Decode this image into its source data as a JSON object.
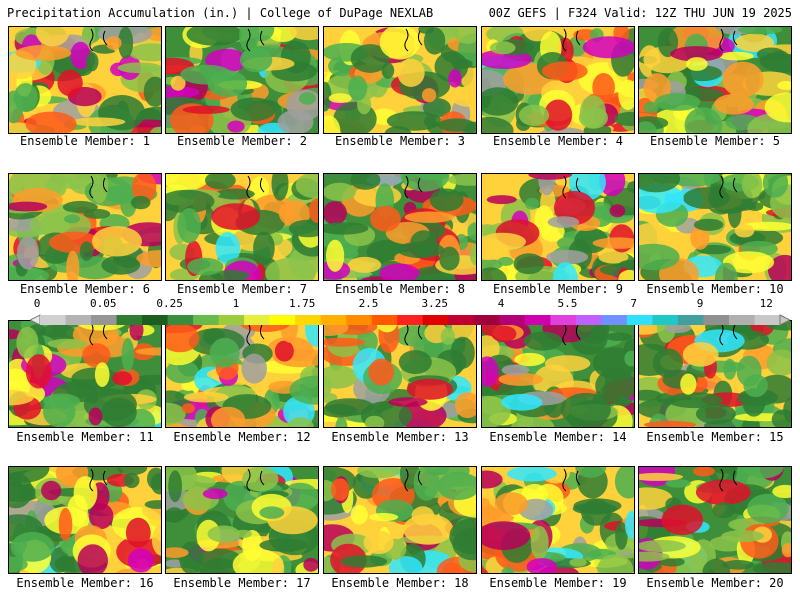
{
  "header": {
    "left": "Precipitation Accumulation (in.) | College of DuPage NEXLAB",
    "right": "00Z GEFS | F324 Valid: 12Z THU JUN 19 2025"
  },
  "panels": [
    {
      "label": "Ensemble Member: 1"
    },
    {
      "label": "Ensemble Member: 2"
    },
    {
      "label": "Ensemble Member: 3"
    },
    {
      "label": "Ensemble Member: 4"
    },
    {
      "label": "Ensemble Member: 5"
    },
    {
      "label": "Ensemble Member: 6"
    },
    {
      "label": "Ensemble Member: 7"
    },
    {
      "label": "Ensemble Member: 8"
    },
    {
      "label": "Ensemble Member: 9"
    },
    {
      "label": "Ensemble Member: 10"
    },
    {
      "label": "Ensemble Member: 11"
    },
    {
      "label": "Ensemble Member: 12"
    },
    {
      "label": "Ensemble Member: 13"
    },
    {
      "label": "Ensemble Member: 14"
    },
    {
      "label": "Ensemble Member: 15"
    },
    {
      "label": "Ensemble Member: 16"
    },
    {
      "label": "Ensemble Member: 17"
    },
    {
      "label": "Ensemble Member: 18"
    },
    {
      "label": "Ensemble Member: 19"
    },
    {
      "label": "Ensemble Member: 20"
    }
  ],
  "colorbar": {
    "tick_labels": [
      "0",
      "0.05",
      "0.25",
      "1",
      "1.75",
      "2.5",
      "3.25",
      "4",
      "5.5",
      "7",
      "9",
      "12"
    ],
    "colors": [
      "#d0d0d0",
      "#b4b4b4",
      "#969696",
      "#2e7d32",
      "#1b5e20",
      "#388e3c",
      "#66bb4a",
      "#9ccc3c",
      "#e6f03c",
      "#ffff00",
      "#ffd700",
      "#ffb000",
      "#ff8c00",
      "#ff5a00",
      "#ff2020",
      "#e00000",
      "#c00030",
      "#a0003c",
      "#b40078",
      "#d000b0",
      "#e040e0",
      "#c060ff",
      "#7090ff",
      "#30e0ff",
      "#20c8c8",
      "#40a0a0",
      "#909090",
      "#b0b0b0",
      "#c8c8c8"
    ]
  }
}
